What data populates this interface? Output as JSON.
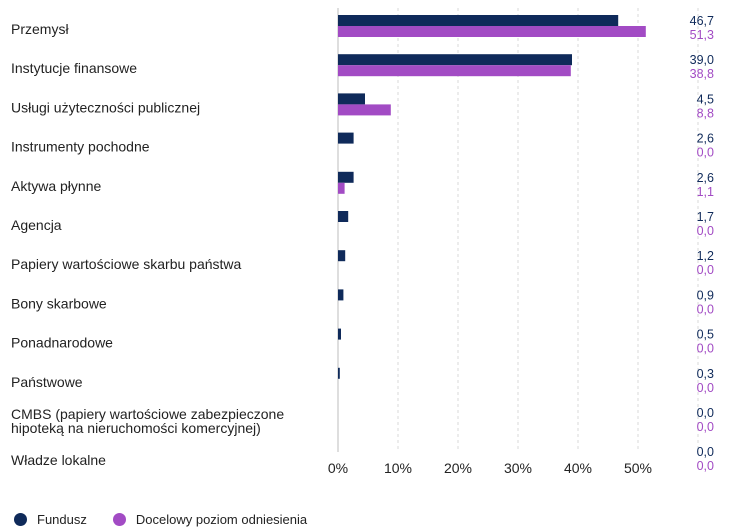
{
  "chart_data": {
    "type": "bar",
    "orientation": "horizontal",
    "categories": [
      "Przemysł",
      "Instytucje finansowe",
      "Usługi użyteczności publicznej",
      "Instrumenty pochodne",
      "Aktywa płynne",
      "Agencja",
      "Papiery wartościowe skarbu państwa",
      "Bony skarbowe",
      "Ponadnarodowe",
      "Państwowe",
      "CMBS (papiery wartościowe zabezpieczone hipoteką na nieruchomości komercyjnej)",
      "Władze lokalne"
    ],
    "series": [
      {
        "name": "Fundusz",
        "color": "#0f2a5a",
        "values": [
          46.7,
          39.0,
          4.5,
          2.6,
          2.6,
          1.7,
          1.2,
          0.9,
          0.5,
          0.3,
          0.0,
          0.0
        ],
        "labels": [
          "46,7",
          "39,0",
          "4,5",
          "2,6",
          "2,6",
          "1,7",
          "1,2",
          "0,9",
          "0,5",
          "0,3",
          "0,0",
          "0,0"
        ]
      },
      {
        "name": "Docelowy poziom odniesienia",
        "color": "#a24bc4",
        "values": [
          51.3,
          38.8,
          8.8,
          0.0,
          1.1,
          0.0,
          0.0,
          0.0,
          0.0,
          0.0,
          0.0,
          0.0
        ],
        "labels": [
          "51,3",
          "38,8",
          "8,8",
          "0,0",
          "1,1",
          "0,0",
          "0,0",
          "0,0",
          "0,0",
          "0,0",
          "0,0",
          "0,0"
        ]
      }
    ],
    "xlim": [
      0,
      60
    ],
    "xticks": [
      0,
      10,
      20,
      30,
      40,
      50
    ],
    "xtick_labels": [
      "0%",
      "10%",
      "20%",
      "30%",
      "40%",
      "50%"
    ],
    "title": "",
    "xlabel": "",
    "ylabel": "",
    "gridlines": "vertical-dashed",
    "legend_position": "bottom-left"
  }
}
